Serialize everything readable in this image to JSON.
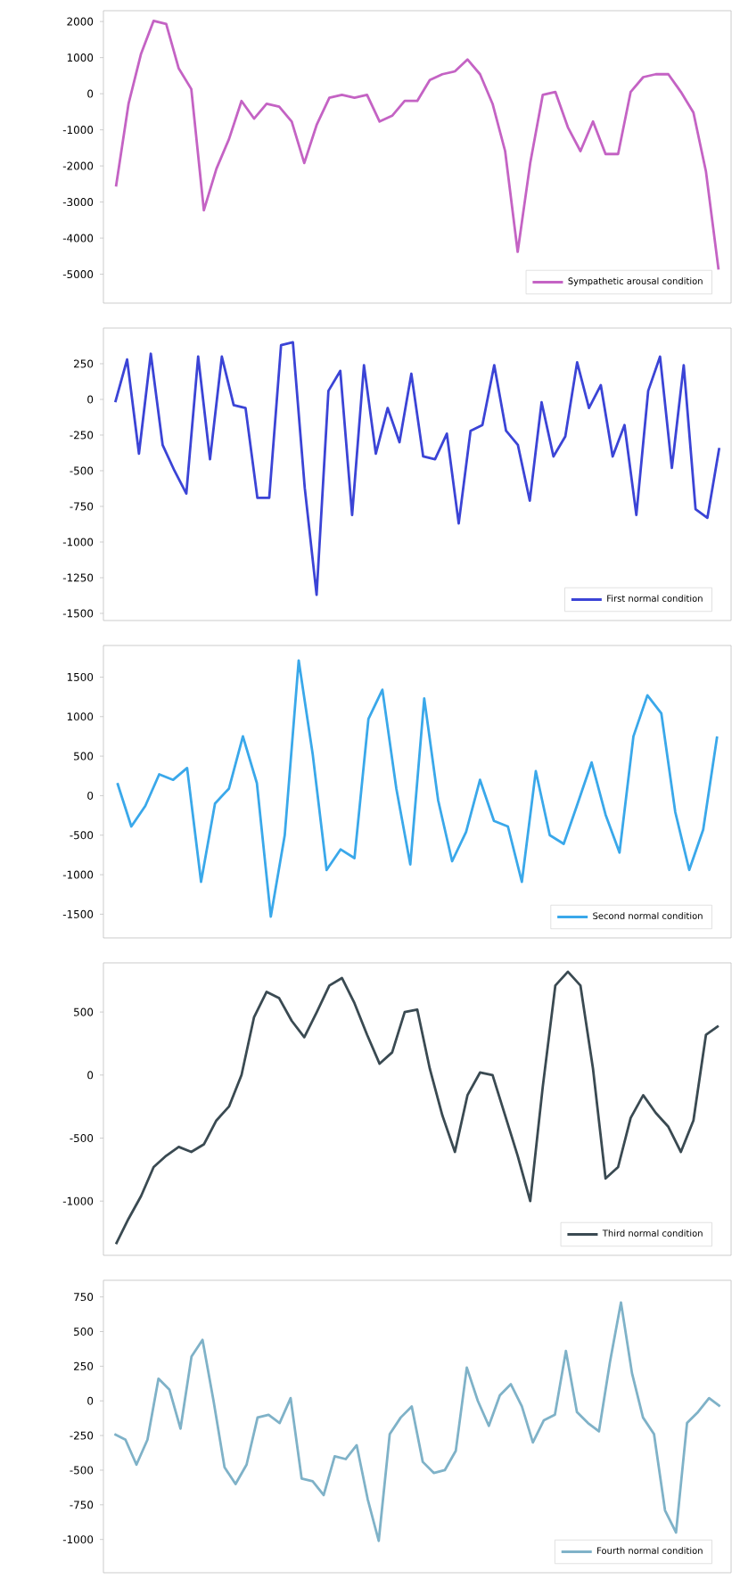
{
  "chart_data": [
    {
      "type": "line",
      "categories": [
        null,
        null,
        null,
        null,
        null,
        null,
        null,
        null,
        null,
        null,
        null,
        null,
        null,
        null,
        null,
        null,
        null,
        null,
        null,
        null,
        null,
        null,
        null,
        null,
        null,
        null,
        null,
        null,
        null,
        null,
        null,
        null,
        null,
        null,
        null,
        null,
        null,
        null,
        null,
        null,
        null,
        null,
        null,
        null,
        null,
        null,
        null,
        null,
        null
      ],
      "series": [
        {
          "name": "Sympathetic arousal condition",
          "color": "#c463c4",
          "values": [
            -2570,
            -280,
            1110,
            2020,
            1930,
            700,
            130,
            -3230,
            -2080,
            -1260,
            -200,
            -690,
            -280,
            -360,
            -770,
            -1920,
            -850,
            -110,
            -30,
            -110,
            -30,
            -770,
            -610,
            -200,
            -200,
            380,
            540,
            620,
            950,
            540,
            -280,
            -1590,
            -4380,
            -1920,
            -30,
            50,
            -930,
            -1590,
            -770,
            -1670,
            -1670,
            50,
            460,
            540,
            540,
            50,
            -520,
            -2160,
            -4870
          ]
        }
      ],
      "ylim": [
        -5800,
        2300
      ],
      "yticks": [
        2000,
        1000,
        0,
        -1000,
        -2000,
        -3000,
        -4000,
        -5000
      ],
      "legend": "bottom right",
      "tick_labels": "y"
    },
    {
      "type": "line",
      "categories": [
        null,
        null,
        null,
        null,
        null,
        null,
        null,
        null,
        null,
        null,
        null,
        null,
        null,
        null,
        null,
        null,
        null,
        null,
        null,
        null,
        null,
        null,
        null,
        null,
        null,
        null,
        null,
        null,
        null,
        null,
        null,
        null,
        null,
        null,
        null,
        null,
        null,
        null,
        null,
        null,
        null,
        null,
        null,
        null,
        null,
        null,
        null,
        null,
        null,
        null,
        null,
        null
      ],
      "series": [
        {
          "name": "First normal condition",
          "color": "#3b44d6",
          "values": [
            -20,
            280,
            -380,
            320,
            -320,
            -500,
            -660,
            300,
            -420,
            300,
            -40,
            -60,
            -690,
            -690,
            380,
            400,
            -620,
            -1370,
            60,
            200,
            -810,
            240,
            -380,
            -60,
            -300,
            180,
            -400,
            -420,
            -240,
            -870,
            -220,
            -180,
            240,
            -220,
            -320,
            -710,
            -20,
            -400,
            -260,
            260,
            -60,
            100,
            -400,
            -180,
            -810,
            60,
            300,
            -480,
            240,
            -770,
            -830,
            -340
          ]
        }
      ],
      "ylim": [
        -1550,
        500
      ],
      "yticks": [
        250,
        0,
        -250,
        -500,
        -750,
        -1000,
        -1250,
        -1500
      ],
      "legend": "bottom right",
      "tick_labels": "y"
    },
    {
      "type": "line",
      "categories": [
        null,
        null,
        null,
        null,
        null,
        null,
        null,
        null,
        null,
        null,
        null,
        null,
        null,
        null,
        null,
        null,
        null,
        null,
        null,
        null,
        null,
        null,
        null,
        null,
        null,
        null,
        null,
        null,
        null,
        null,
        null,
        null,
        null,
        null,
        null,
        null,
        null,
        null,
        null,
        null,
        null,
        null,
        null,
        null
      ],
      "series": [
        {
          "name": "Second normal condition",
          "color": "#3aa8ea",
          "values": [
            160,
            -390,
            -130,
            270,
            200,
            350,
            -1090,
            -100,
            90,
            750,
            160,
            -1530,
            -500,
            1710,
            530,
            -940,
            -680,
            -790,
            970,
            1340,
            90,
            -870,
            1230,
            -60,
            -830,
            -460,
            200,
            -320,
            -390,
            -1090,
            310,
            -500,
            -610,
            -100,
            420,
            -240,
            -720,
            750,
            1270,
            1040,
            -210,
            -940,
            -430,
            750
          ]
        }
      ],
      "ylim": [
        -1800,
        1900
      ],
      "yticks": [
        1500,
        1000,
        500,
        0,
        -500,
        -1000,
        -1500
      ],
      "legend": "bottom right",
      "tick_labels": "y"
    },
    {
      "type": "line",
      "categories": [
        null,
        null,
        null,
        null,
        null,
        null,
        null,
        null,
        null,
        null,
        null,
        null,
        null,
        null,
        null,
        null,
        null,
        null,
        null,
        null,
        null,
        null,
        null,
        null,
        null,
        null,
        null,
        null,
        null,
        null,
        null,
        null,
        null,
        null,
        null,
        null,
        null,
        null,
        null,
        null,
        null,
        null,
        null,
        null,
        null,
        null,
        null,
        null,
        null
      ],
      "series": [
        {
          "name": "Third normal condition",
          "color": "#3a4a52",
          "values": [
            -1340,
            -1140,
            -960,
            -730,
            -640,
            -570,
            -610,
            -550,
            -360,
            -250,
            0,
            460,
            660,
            610,
            430,
            300,
            500,
            710,
            770,
            570,
            320,
            90,
            180,
            500,
            520,
            50,
            -320,
            -610,
            -160,
            20,
            0,
            -320,
            -640,
            -1000,
            -90,
            710,
            820,
            710,
            50,
            -820,
            -730,
            -340,
            -160,
            -300,
            -410,
            -610,
            -360,
            320,
            390
          ]
        }
      ],
      "ylim": [
        -1430,
        890
      ],
      "yticks": [
        500,
        0,
        -500,
        -1000
      ],
      "legend": "bottom right",
      "tick_labels": "y"
    },
    {
      "type": "line",
      "categories": [
        null,
        null,
        null,
        null,
        null,
        null,
        null,
        null,
        null,
        null,
        null,
        null,
        null,
        null,
        null,
        null,
        null,
        null,
        null,
        null,
        null,
        null,
        null,
        null,
        null,
        null,
        null,
        null,
        null,
        null,
        null,
        null,
        null,
        null,
        null,
        null,
        null,
        null,
        null,
        null,
        null,
        null,
        null,
        null,
        null,
        null,
        null,
        null,
        null,
        null,
        null,
        null,
        null,
        null,
        null,
        null
      ],
      "series": [
        {
          "name": "Fourth normal condition",
          "color": "#7fb2c8",
          "values": [
            -240,
            -280,
            -460,
            -280,
            160,
            80,
            -200,
            320,
            440,
            0,
            -480,
            -600,
            -460,
            -120,
            -100,
            -160,
            20,
            -560,
            -580,
            -680,
            -400,
            -420,
            -320,
            -710,
            -1010,
            -240,
            -120,
            -40,
            -440,
            -520,
            -500,
            -360,
            240,
            0,
            -180,
            40,
            120,
            -40,
            -300,
            -140,
            -100,
            360,
            -80,
            -160,
            -220,
            280,
            710,
            200,
            -120,
            -240,
            -790,
            -950,
            -160,
            -80,
            20,
            -40
          ]
        }
      ],
      "ylim": [
        -1240,
        870
      ],
      "yticks": [
        750,
        500,
        250,
        0,
        -250,
        -500,
        -750,
        -1000
      ],
      "legend": "bottom right",
      "tick_labels": "y"
    }
  ]
}
